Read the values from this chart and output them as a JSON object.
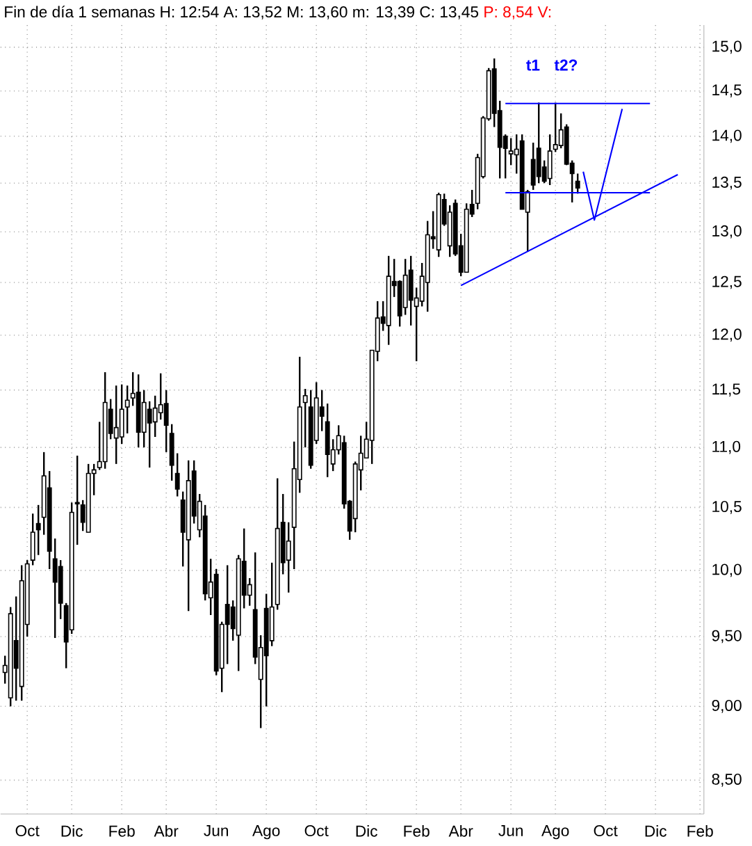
{
  "chart_data": {
    "type": "candlestick",
    "title": "Fin de día 1 semanas H: 12:54 A: 13,52 M: 13,60 m: 13,39 C: 13,45",
    "subtitle": "P: 8,54 V:",
    "categories": [
      null,
      null,
      null,
      null,
      "Oct",
      null,
      null,
      null,
      null,
      null,
      null,
      null,
      "Dic",
      null,
      null,
      null,
      null,
      null,
      null,
      null,
      null,
      "Feb",
      null,
      null,
      null,
      null,
      null,
      null,
      null,
      "Abr",
      null,
      null,
      null,
      null,
      null,
      null,
      null,
      null,
      "Jun",
      null,
      null,
      null,
      null,
      null,
      null,
      null,
      null,
      "Ago",
      null,
      null,
      null,
      null,
      null,
      null,
      null,
      null,
      "Oct",
      null,
      null,
      null,
      null,
      null,
      null,
      null,
      null,
      "Dic",
      null,
      null,
      null,
      null,
      null,
      null,
      null,
      null,
      "Feb",
      null,
      null,
      null,
      null,
      null,
      null,
      null,
      "Abr",
      null,
      null,
      null,
      null,
      null,
      null,
      null,
      null,
      "Jun",
      null,
      null,
      null,
      null,
      null,
      null,
      null,
      "Ago",
      null,
      null,
      null,
      null,
      null,
      null,
      null,
      null,
      "Oct",
      null,
      null,
      null,
      null,
      null,
      null,
      null,
      null,
      "Dic",
      null,
      null,
      null,
      null,
      null,
      null,
      null,
      "Feb"
    ],
    "ohlc": [
      [
        9.24,
        9.36,
        9.16,
        9.29
      ],
      [
        9.06,
        9.72,
        9.0,
        9.67
      ],
      [
        9.47,
        9.8,
        9.04,
        9.27
      ],
      [
        9.14,
        10.04,
        9.04,
        9.92
      ],
      [
        9.59,
        10.08,
        9.5,
        10.05
      ],
      [
        10.08,
        10.45,
        10.04,
        10.3
      ],
      [
        10.37,
        10.52,
        10.12,
        10.32
      ],
      [
        10.42,
        10.96,
        10.28,
        10.76
      ],
      [
        10.66,
        10.8,
        10.01,
        10.15
      ],
      [
        10.09,
        10.25,
        9.49,
        9.91
      ],
      [
        10.03,
        10.08,
        9.63,
        9.75
      ],
      [
        9.73,
        9.75,
        9.27,
        9.46
      ],
      [
        9.55,
        10.54,
        9.52,
        10.46
      ],
      [
        10.54,
        10.93,
        10.2,
        10.53
      ],
      [
        10.52,
        10.56,
        10.31,
        10.38
      ],
      [
        10.3,
        10.86,
        10.3,
        10.78
      ],
      [
        10.78,
        10.86,
        10.6,
        10.81
      ],
      [
        10.83,
        11.22,
        10.81,
        10.88
      ],
      [
        10.88,
        11.66,
        10.82,
        11.39
      ],
      [
        11.33,
        11.42,
        11.07,
        11.12
      ],
      [
        11.08,
        11.54,
        10.86,
        11.17
      ],
      [
        11.09,
        11.55,
        11.03,
        11.33
      ],
      [
        11.35,
        11.54,
        11.12,
        11.41
      ],
      [
        11.43,
        11.66,
        11.36,
        11.47
      ],
      [
        11.48,
        11.64,
        11.0,
        11.13
      ],
      [
        11.13,
        11.5,
        11.0,
        11.39
      ],
      [
        11.33,
        11.4,
        10.83,
        11.21
      ],
      [
        11.22,
        11.45,
        11.09,
        11.34
      ],
      [
        11.3,
        11.65,
        11.24,
        11.37
      ],
      [
        11.38,
        11.5,
        10.96,
        11.19
      ],
      [
        11.12,
        11.2,
        10.72,
        10.85
      ],
      [
        10.78,
        10.95,
        10.59,
        10.65
      ],
      [
        10.56,
        10.63,
        10.03,
        10.3
      ],
      [
        10.24,
        10.89,
        9.69,
        10.72
      ],
      [
        10.8,
        10.89,
        10.37,
        10.43
      ],
      [
        10.32,
        10.61,
        10.26,
        10.55
      ],
      [
        10.43,
        10.52,
        9.77,
        9.82
      ],
      [
        9.79,
        10.09,
        9.66,
        9.91
      ],
      [
        9.97,
        10.01,
        9.22,
        9.25
      ],
      [
        9.27,
        9.61,
        9.1,
        9.59
      ],
      [
        9.74,
        10.04,
        9.3,
        9.59
      ],
      [
        9.72,
        9.77,
        9.47,
        9.56
      ],
      [
        9.51,
        10.12,
        9.25,
        10.09
      ],
      [
        10.07,
        10.33,
        9.71,
        9.81
      ],
      [
        9.81,
        9.94,
        9.73,
        9.89
      ],
      [
        9.7,
        10.14,
        9.3,
        9.35
      ],
      [
        9.19,
        9.51,
        8.85,
        9.42
      ],
      [
        9.71,
        9.82,
        9.0,
        9.36
      ],
      [
        9.47,
        10.06,
        9.43,
        9.72
      ],
      [
        9.74,
        10.74,
        9.7,
        10.33
      ],
      [
        10.38,
        10.61,
        9.97,
        10.06
      ],
      [
        10.08,
        10.38,
        9.83,
        10.23
      ],
      [
        10.34,
        11.05,
        10.01,
        10.82
      ],
      [
        10.73,
        11.8,
        10.62,
        11.35
      ],
      [
        11.39,
        11.51,
        11.0,
        11.45
      ],
      [
        11.35,
        11.5,
        10.82,
        10.85
      ],
      [
        11.06,
        11.57,
        11.03,
        11.43
      ],
      [
        11.35,
        11.5,
        11.14,
        11.27
      ],
      [
        11.22,
        11.38,
        10.75,
        10.94
      ],
      [
        10.86,
        11.07,
        10.8,
        10.98
      ],
      [
        10.98,
        11.19,
        10.94,
        11.1
      ],
      [
        11.04,
        11.1,
        10.49,
        10.53
      ],
      [
        10.55,
        10.56,
        10.24,
        10.31
      ],
      [
        10.41,
        10.88,
        10.3,
        10.86
      ],
      [
        10.81,
        11.1,
        10.64,
        10.95
      ],
      [
        10.91,
        11.22,
        10.91,
        11.07
      ],
      [
        11.06,
        11.86,
        10.86,
        11.86
      ],
      [
        11.85,
        12.32,
        11.76,
        12.16
      ],
      [
        12.17,
        12.32,
        12.04,
        12.11
      ],
      [
        12.09,
        12.76,
        11.91,
        12.56
      ],
      [
        12.51,
        12.73,
        12.36,
        12.47
      ],
      [
        12.51,
        12.52,
        12.08,
        12.18
      ],
      [
        12.26,
        12.73,
        12.19,
        12.57
      ],
      [
        12.62,
        12.76,
        12.09,
        12.33
      ],
      [
        12.27,
        12.45,
        11.76,
        12.35
      ],
      [
        12.32,
        12.69,
        12.27,
        12.56
      ],
      [
        12.5,
        13.11,
        12.22,
        12.97
      ],
      [
        12.95,
        13.21,
        12.83,
        12.93
      ],
      [
        12.82,
        13.4,
        12.75,
        13.38
      ],
      [
        13.33,
        13.39,
        13.06,
        13.08
      ],
      [
        12.86,
        13.27,
        12.75,
        13.2
      ],
      [
        13.29,
        13.33,
        12.76,
        12.78
      ],
      [
        12.86,
        12.98,
        12.56,
        12.6
      ],
      [
        12.6,
        13.29,
        12.6,
        13.23
      ],
      [
        13.28,
        13.43,
        13.15,
        13.18
      ],
      [
        13.29,
        13.81,
        13.23,
        13.77
      ],
      [
        13.57,
        14.22,
        13.55,
        14.2
      ],
      [
        14.19,
        14.76,
        14.17,
        14.73
      ],
      [
        14.75,
        14.87,
        14.1,
        14.25
      ],
      [
        14.28,
        14.39,
        13.55,
        13.88
      ],
      [
        14.0,
        14.02,
        13.55,
        13.87
      ],
      [
        13.81,
        13.98,
        13.69,
        13.84
      ],
      [
        13.8,
        14.02,
        13.6,
        13.86
      ],
      [
        13.95,
        14.02,
        13.23,
        13.23
      ],
      [
        13.2,
        13.43,
        12.8,
        13.41
      ],
      [
        13.75,
        13.93,
        13.43,
        13.48
      ],
      [
        13.87,
        14.37,
        13.5,
        13.57
      ],
      [
        13.67,
        13.74,
        13.5,
        13.52
      ],
      [
        13.55,
        14.02,
        13.48,
        13.84
      ],
      [
        13.86,
        14.37,
        13.83,
        13.91
      ],
      [
        13.9,
        14.25,
        13.87,
        14.07
      ],
      [
        14.1,
        14.13,
        13.69,
        13.7
      ],
      [
        13.71,
        13.74,
        13.3,
        13.6
      ],
      [
        13.52,
        13.6,
        13.39,
        13.45
      ],
      null,
      null,
      null,
      null,
      null,
      null,
      null,
      null,
      null,
      null,
      null,
      null,
      null,
      null,
      null,
      null,
      null,
      null,
      null,
      null,
      null,
      null
    ],
    "series": [
      {
        "type": "line",
        "color": "#0000ff",
        "values": [
          null,
          null,
          null,
          null,
          null,
          null,
          null,
          null,
          null,
          null,
          null,
          null,
          null,
          null,
          null,
          null,
          null,
          null,
          null,
          null,
          null,
          null,
          null,
          null,
          null,
          null,
          null,
          null,
          null,
          null,
          null,
          null,
          null,
          null,
          null,
          null,
          null,
          null,
          null,
          null,
          null,
          null,
          null,
          null,
          null,
          null,
          null,
          null,
          null,
          null,
          null,
          null,
          null,
          null,
          null,
          null,
          null,
          null,
          null,
          null,
          null,
          null,
          null,
          null,
          null,
          null,
          null,
          null,
          null,
          null,
          null,
          null,
          null,
          null,
          null,
          null,
          null,
          null,
          null,
          null,
          null,
          null,
          null,
          null,
          null,
          null,
          null,
          null,
          null,
          null,
          14.36,
          null,
          null,
          null,
          null,
          null,
          null,
          null,
          null,
          null,
          null,
          null,
          null,
          null,
          null,
          null,
          null,
          null,
          null,
          null,
          null,
          null,
          null,
          null,
          null,
          null,
          14.36,
          null,
          null,
          null,
          null,
          null,
          null,
          null,
          null,
          null
        ]
      },
      {
        "type": "line",
        "color": "#0000ff",
        "values": [
          null,
          null,
          null,
          null,
          null,
          null,
          null,
          null,
          null,
          null,
          null,
          null,
          null,
          null,
          null,
          null,
          null,
          null,
          null,
          null,
          null,
          null,
          null,
          null,
          null,
          null,
          null,
          null,
          null,
          null,
          null,
          null,
          null,
          null,
          null,
          null,
          null,
          null,
          null,
          null,
          null,
          null,
          null,
          null,
          null,
          null,
          null,
          null,
          null,
          null,
          null,
          null,
          null,
          null,
          null,
          null,
          null,
          null,
          null,
          null,
          null,
          null,
          null,
          null,
          null,
          null,
          null,
          null,
          null,
          null,
          null,
          null,
          null,
          null,
          null,
          null,
          null,
          null,
          null,
          null,
          null,
          null,
          null,
          null,
          null,
          null,
          null,
          null,
          null,
          null,
          13.4,
          null,
          null,
          null,
          null,
          null,
          null,
          null,
          null,
          null,
          null,
          null,
          null,
          null,
          null,
          null,
          null,
          null,
          null,
          null,
          null,
          null,
          null,
          null,
          null,
          null,
          13.4,
          null,
          null,
          null,
          null,
          null,
          null,
          null,
          null,
          null
        ]
      },
      {
        "type": "line",
        "color": "#0000ff",
        "values": [
          null,
          null,
          null,
          null,
          null,
          null,
          null,
          null,
          null,
          null,
          null,
          null,
          null,
          null,
          null,
          null,
          null,
          null,
          null,
          null,
          null,
          null,
          null,
          null,
          null,
          null,
          null,
          null,
          null,
          null,
          null,
          null,
          null,
          null,
          null,
          null,
          null,
          null,
          null,
          null,
          null,
          null,
          null,
          null,
          null,
          null,
          null,
          null,
          null,
          null,
          null,
          null,
          null,
          null,
          null,
          null,
          null,
          null,
          null,
          null,
          null,
          null,
          null,
          null,
          null,
          null,
          null,
          null,
          null,
          null,
          null,
          null,
          null,
          null,
          null,
          null,
          null,
          null,
          null,
          null,
          null,
          null,
          12.47,
          null,
          null,
          null,
          null,
          null,
          null,
          null,
          null,
          null,
          null,
          null,
          null,
          null,
          null,
          null,
          null,
          null,
          null,
          null,
          null,
          null,
          null,
          null,
          null,
          null,
          null,
          null,
          null,
          null,
          null,
          null,
          null,
          null,
          null,
          null,
          null,
          null,
          null,
          13.59,
          null,
          null,
          null,
          null
        ]
      },
      {
        "type": "line",
        "color": "#0000ff",
        "values": [
          null,
          null,
          null,
          null,
          null,
          null,
          null,
          null,
          null,
          null,
          null,
          null,
          null,
          null,
          null,
          null,
          null,
          null,
          null,
          null,
          null,
          null,
          null,
          null,
          null,
          null,
          null,
          null,
          null,
          null,
          null,
          null,
          null,
          null,
          null,
          null,
          null,
          null,
          null,
          null,
          null,
          null,
          null,
          null,
          null,
          null,
          null,
          null,
          null,
          null,
          null,
          null,
          null,
          null,
          null,
          null,
          null,
          null,
          null,
          null,
          null,
          null,
          null,
          null,
          null,
          null,
          null,
          null,
          null,
          null,
          null,
          null,
          null,
          null,
          null,
          null,
          null,
          null,
          null,
          null,
          null,
          null,
          null,
          null,
          null,
          null,
          null,
          null,
          null,
          null,
          null,
          null,
          null,
          null,
          null,
          null,
          null,
          null,
          null,
          null,
          null,
          null,
          null,
          null,
          13.62,
          null,
          13.12,
          null,
          null,
          null,
          null,
          14.3,
          null,
          null,
          null,
          null,
          null,
          null,
          null,
          null,
          null,
          null,
          null,
          null,
          null,
          null
        ]
      }
    ],
    "annotations": [
      "t1",
      "t2?"
    ],
    "log": true,
    "grid": true,
    "ylim": [
      8.28,
      15.26
    ],
    "yticks": [
      {
        "value": 15.0,
        "label": "15,0"
      },
      {
        "value": 14.5,
        "label": "14,5"
      },
      {
        "value": 14.0,
        "label": "14,0"
      },
      {
        "value": 13.5,
        "label": "13,5"
      },
      {
        "value": 13.0,
        "label": "13,0"
      },
      {
        "value": 12.5,
        "label": "12,5"
      },
      {
        "value": 12.0,
        "label": "12,0"
      },
      {
        "value": 11.5,
        "label": "11,5"
      },
      {
        "value": 11.0,
        "label": "11,0"
      },
      {
        "value": 10.5,
        "label": "10,5"
      },
      {
        "value": 10.0,
        "label": "10,0"
      },
      {
        "value": 9.5,
        "label": "9,50"
      },
      {
        "value": 9.0,
        "label": "9,00"
      },
      {
        "value": 8.5,
        "label": "8,50"
      }
    ]
  }
}
